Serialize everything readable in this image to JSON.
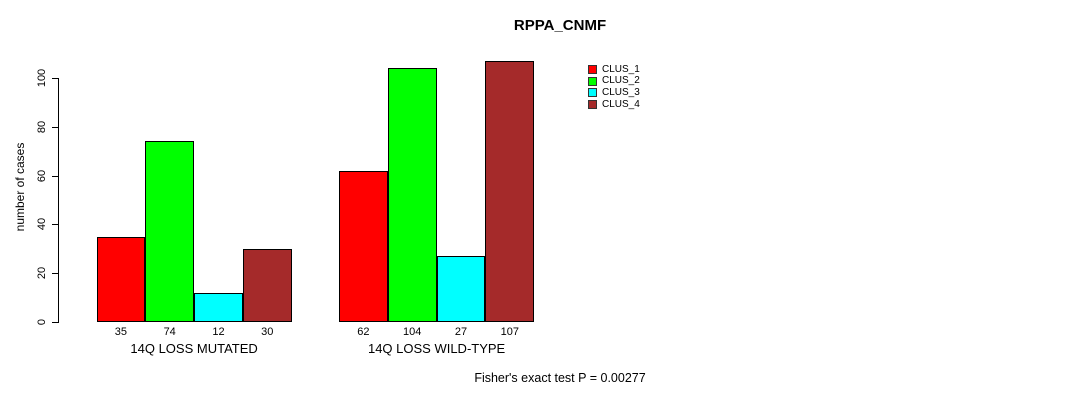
{
  "title": "RPPA_CNMF",
  "ylabel": "number of cases",
  "yticks": [
    0,
    20,
    40,
    60,
    80,
    100
  ],
  "legend": [
    {
      "label": "CLUS_1",
      "color": "#ff0000"
    },
    {
      "label": "CLUS_2",
      "color": "#00ff00"
    },
    {
      "label": "CLUS_3",
      "color": "#00ffff"
    },
    {
      "label": "CLUS_4",
      "color": "#a52a2a"
    }
  ],
  "footer": "Fisher's exact test P = 0.00277",
  "chart_data": {
    "type": "bar",
    "title": "RPPA_CNMF",
    "xlabel": "",
    "ylabel": "number of cases",
    "ylim": [
      0,
      107
    ],
    "grid": false,
    "legend_position": "top-right",
    "categories": [
      "14Q LOSS MUTATED",
      "14Q LOSS WILD-TYPE"
    ],
    "series": [
      {
        "name": "CLUS_1",
        "color": "#ff0000",
        "values": [
          35,
          62
        ]
      },
      {
        "name": "CLUS_2",
        "color": "#00ff00",
        "values": [
          74,
          104
        ]
      },
      {
        "name": "CLUS_3",
        "color": "#00ffff",
        "values": [
          12,
          27
        ]
      },
      {
        "name": "CLUS_4",
        "color": "#a52a2a",
        "values": [
          30,
          107
        ]
      }
    ],
    "bar_value_labels": [
      [
        35,
        74,
        12,
        30
      ],
      [
        62,
        104,
        27,
        107
      ]
    ],
    "annotation": "Fisher's exact test P = 0.00277"
  }
}
